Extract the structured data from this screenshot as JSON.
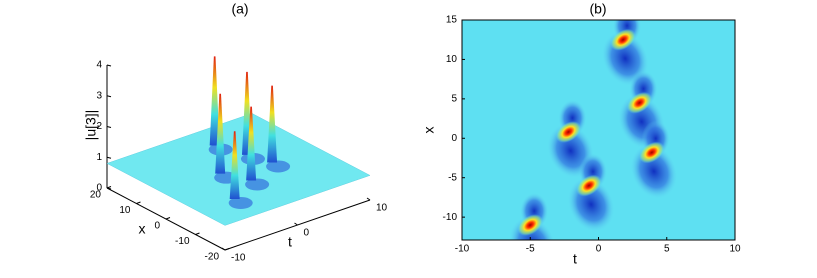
{
  "chart_data": [
    {
      "type": "surface3d",
      "title": "(a)",
      "xlabel": "t",
      "ylabel": "x",
      "zlabel": "|u[3]|",
      "xlim": [
        -10,
        10
      ],
      "ylim": [
        -20,
        20
      ],
      "zlim": [
        0,
        4
      ],
      "xticks": [
        -10,
        0,
        10
      ],
      "yticks": [
        -20,
        -10,
        0,
        10,
        20
      ],
      "zticks": [
        0,
        1,
        2,
        3,
        4
      ],
      "baseline": 0.8,
      "peaks": {
        "x": [
          1.8,
          3,
          -2.2,
          3.9,
          -0.7,
          -5
        ],
        "y": [
          12.5,
          4.5,
          0.8,
          -1.8,
          -6,
          -11
        ],
        "z": [
          3.7,
          3.5,
          3.4,
          3.3,
          3.2,
          3.0
        ]
      }
    },
    {
      "type": "heatmap",
      "title": "(b)",
      "xlabel": "t",
      "ylabel": "x",
      "xlim": [
        -10,
        10
      ],
      "ylim": [
        -12.9,
        15
      ],
      "xticks": [
        -10,
        -5,
        0,
        5,
        10
      ],
      "yticks": [
        -10,
        -5,
        0,
        5,
        10,
        15
      ],
      "peaks": {
        "x": [
          1.8,
          3,
          -2.2,
          3.9,
          -0.7,
          -5
        ],
        "y": [
          12.5,
          4.5,
          0.8,
          -1.8,
          -6,
          -11
        ]
      }
    }
  ]
}
